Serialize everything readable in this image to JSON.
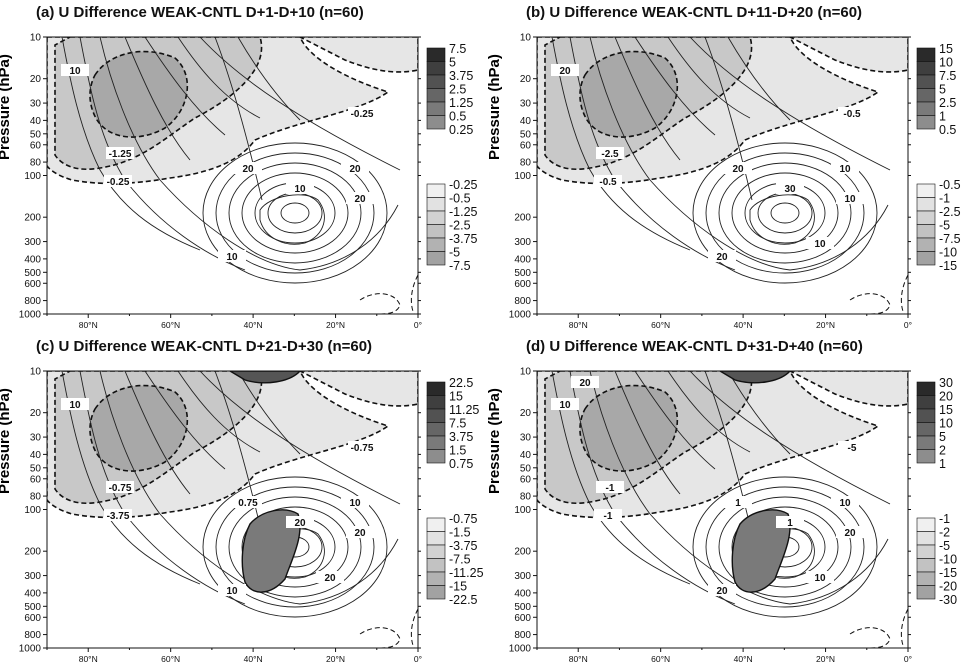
{
  "figure": {
    "ylabel": "Pressure (hPa)"
  },
  "chart_data": [
    {
      "type": "contour",
      "title": "(a) U Difference WEAK-CNTL D+1-D+10 (n=60)",
      "ylabel": "Pressure (hPa)",
      "x_ticks": [
        "80°N",
        "60°N",
        "40°N",
        "20°N",
        "0°"
      ],
      "y_ticks": [
        10,
        20,
        30,
        40,
        50,
        60,
        80,
        100,
        200,
        300,
        400,
        500,
        600,
        800,
        1000
      ],
      "y_scale": "log",
      "colorbar_positive": [
        "7.5",
        "5",
        "3.75",
        "2.5",
        "1.25",
        "0.5",
        "0.25"
      ],
      "colorbar_negative": [
        "-0.25",
        "-0.5",
        "-1.25",
        "-2.5",
        "-3.75",
        "-5",
        "-7.5"
      ],
      "contour_labels": [
        "-0.25",
        "-1.25",
        "-0.25",
        "20",
        "10",
        "20",
        "10",
        "20",
        "10"
      ],
      "shaded_positive": false
    },
    {
      "type": "contour",
      "title": "(b) U Difference WEAK-CNTL D+11-D+20 (n=60)",
      "ylabel": "Pressure (hPa)",
      "x_ticks": [
        "80°N",
        "60°N",
        "40°N",
        "20°N",
        "0°"
      ],
      "y_ticks": [
        10,
        20,
        30,
        40,
        50,
        60,
        80,
        100,
        200,
        300,
        400,
        500,
        600,
        800,
        1000
      ],
      "y_scale": "log",
      "colorbar_positive": [
        "15",
        "10",
        "7.5",
        "5",
        "2.5",
        "1",
        "0.5"
      ],
      "colorbar_negative": [
        "-0.5",
        "-1",
        "-2.5",
        "-5",
        "-7.5",
        "-10",
        "-15"
      ],
      "contour_labels": [
        "-0.5",
        "-2.5",
        "-0.5",
        "20",
        "30",
        "10",
        "20",
        "10",
        "20",
        "10"
      ],
      "shaded_positive": false
    },
    {
      "type": "contour",
      "title": "(c) U Difference WEAK-CNTL D+21-D+30 (n=60)",
      "ylabel": "Pressure (hPa)",
      "x_ticks": [
        "80°N",
        "60°N",
        "40°N",
        "20°N",
        "0°"
      ],
      "y_ticks": [
        10,
        20,
        30,
        40,
        50,
        60,
        80,
        100,
        200,
        300,
        400,
        500,
        600,
        800,
        1000
      ],
      "y_scale": "log",
      "colorbar_positive": [
        "22.5",
        "15",
        "11.25",
        "7.5",
        "3.75",
        "1.5",
        "0.75"
      ],
      "colorbar_negative": [
        "-0.75",
        "-1.5",
        "-3.75",
        "-7.5",
        "-11.25",
        "-15",
        "-22.5"
      ],
      "contour_labels": [
        "-3.75",
        "-0.75",
        "-0.75",
        "0.75",
        "20",
        "20",
        "10",
        "10",
        "10",
        "20"
      ],
      "shaded_positive": true
    },
    {
      "type": "contour",
      "title": "(d) U Difference WEAK-CNTL D+31-D+40 (n=60)",
      "ylabel": "Pressure (hPa)",
      "x_ticks": [
        "80°N",
        "60°N",
        "40°N",
        "20°N",
        "0°"
      ],
      "y_ticks": [
        10,
        20,
        30,
        40,
        50,
        60,
        80,
        100,
        200,
        300,
        400,
        500,
        600,
        800,
        1000
      ],
      "y_scale": "log",
      "colorbar_positive": [
        "30",
        "20",
        "15",
        "10",
        "5",
        "2",
        "1"
      ],
      "colorbar_negative": [
        "-1",
        "-2",
        "-5",
        "-10",
        "-15",
        "-20",
        "-30"
      ],
      "contour_labels": [
        "-1",
        "-1",
        "-5",
        "1",
        "1",
        "20",
        "20",
        "10",
        "10",
        "10",
        "20"
      ],
      "shaded_positive": true
    }
  ]
}
